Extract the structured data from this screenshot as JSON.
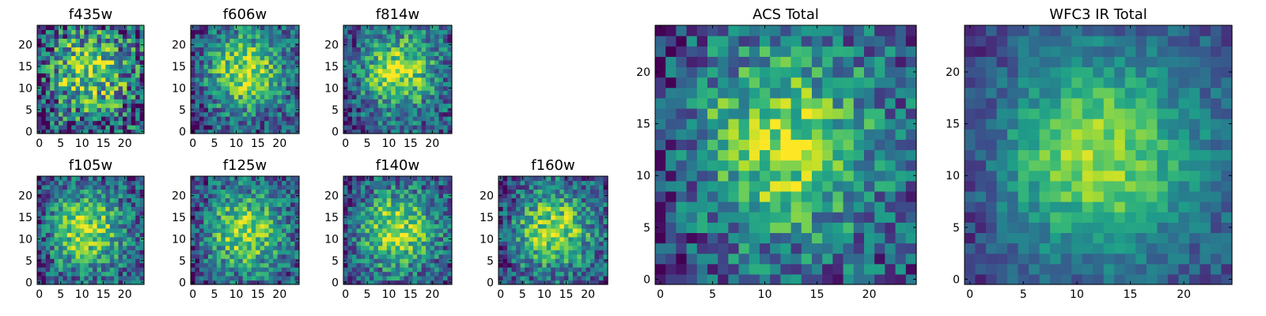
{
  "colormap": "viridis",
  "chart_data": [
    {
      "type": "heatmap",
      "title": "f435w",
      "grid_size": 25,
      "xticks": [
        0,
        5,
        10,
        15,
        20
      ],
      "yticks": [
        0,
        5,
        10,
        15,
        20
      ],
      "xlim": [
        0,
        24
      ],
      "ylim": [
        0,
        24
      ],
      "peak_xy": [
        12,
        14
      ],
      "noise_level": "high"
    },
    {
      "type": "heatmap",
      "title": "f606w",
      "grid_size": 25,
      "xticks": [
        0,
        5,
        10,
        15,
        20
      ],
      "yticks": [
        0,
        5,
        10,
        15,
        20
      ],
      "xlim": [
        0,
        24
      ],
      "ylim": [
        0,
        24
      ],
      "peak_xy": [
        12,
        14
      ],
      "noise_level": "medium"
    },
    {
      "type": "heatmap",
      "title": "f814w",
      "grid_size": 25,
      "xticks": [
        0,
        5,
        10,
        15,
        20
      ],
      "yticks": [
        0,
        5,
        10,
        15,
        20
      ],
      "xlim": [
        0,
        24
      ],
      "ylim": [
        0,
        24
      ],
      "peak_xy": [
        12,
        14
      ],
      "noise_level": "medium"
    },
    {
      "type": "heatmap",
      "title": "f105w",
      "grid_size": 25,
      "xticks": [
        0,
        5,
        10,
        15,
        20
      ],
      "yticks": [
        0,
        5,
        10,
        15,
        20
      ],
      "xlim": [
        0,
        24
      ],
      "ylim": [
        0,
        24
      ],
      "peak_xy": [
        11,
        12
      ],
      "noise_level": "medium"
    },
    {
      "type": "heatmap",
      "title": "f125w",
      "grid_size": 25,
      "xticks": [
        0,
        5,
        10,
        15,
        20
      ],
      "yticks": [
        0,
        5,
        10,
        15,
        20
      ],
      "xlim": [
        0,
        24
      ],
      "ylim": [
        0,
        24
      ],
      "peak_xy": [
        12,
        12
      ],
      "noise_level": "medium"
    },
    {
      "type": "heatmap",
      "title": "f140w",
      "grid_size": 25,
      "xticks": [
        0,
        5,
        10,
        15,
        20
      ],
      "yticks": [
        0,
        5,
        10,
        15,
        20
      ],
      "xlim": [
        0,
        24
      ],
      "ylim": [
        0,
        24
      ],
      "peak_xy": [
        12,
        12
      ],
      "noise_level": "medium"
    },
    {
      "type": "heatmap",
      "title": "f160w",
      "grid_size": 25,
      "xticks": [
        0,
        5,
        10,
        15,
        20
      ],
      "yticks": [
        0,
        5,
        10,
        15,
        20
      ],
      "xlim": [
        0,
        24
      ],
      "ylim": [
        0,
        24
      ],
      "peak_xy": [
        12,
        12
      ],
      "noise_level": "medium"
    },
    {
      "type": "heatmap",
      "title": "ACS Total",
      "grid_size": 25,
      "xticks": [
        0,
        5,
        10,
        15,
        20
      ],
      "yticks": [
        0,
        5,
        10,
        15,
        20
      ],
      "xlim": [
        0,
        24
      ],
      "ylim": [
        0,
        24
      ],
      "peak_xy": [
        12,
        13
      ],
      "noise_level": "medium"
    },
    {
      "type": "heatmap",
      "title": "WFC3 IR Total",
      "grid_size": 25,
      "xticks": [
        0,
        5,
        10,
        15,
        20
      ],
      "yticks": [
        0,
        5,
        10,
        15,
        20
      ],
      "xlim": [
        0,
        24
      ],
      "ylim": [
        0,
        24
      ],
      "peak_xy": [
        12,
        12
      ],
      "noise_level": "low"
    }
  ]
}
